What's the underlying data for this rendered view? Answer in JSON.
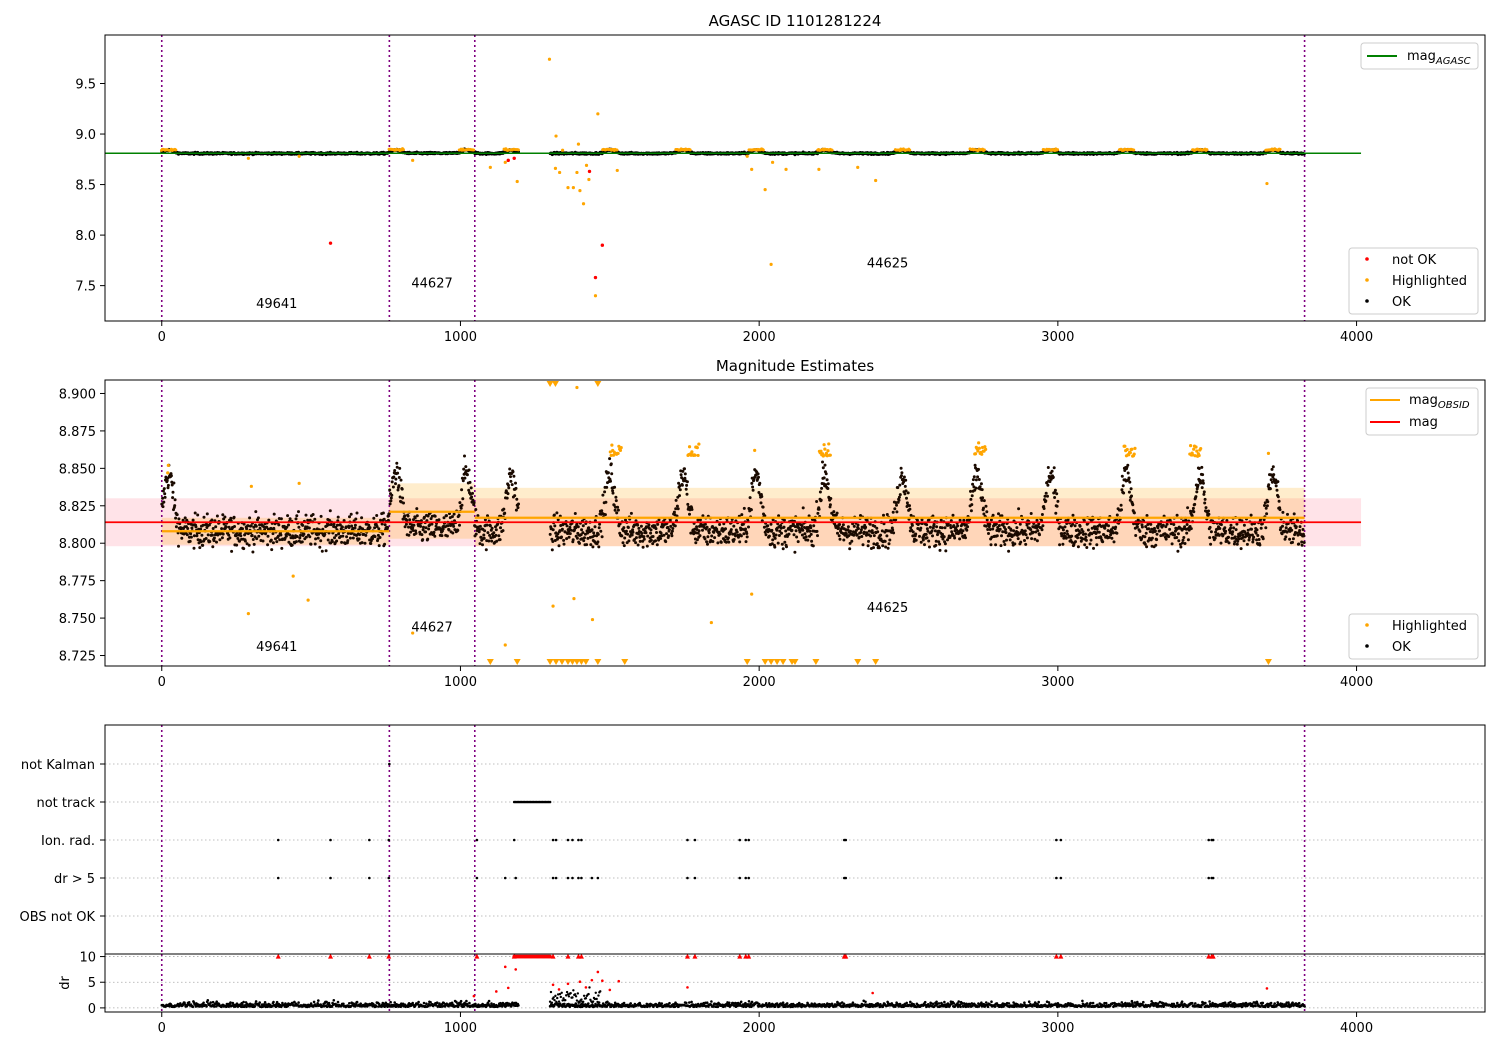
{
  "colors": {
    "ok": "#000000",
    "highlighted": "#ffa500",
    "not_ok": "#ff0000",
    "mag_agasc": "#008000",
    "mag_obsid": "#ffa500",
    "mag": "#ff0000",
    "obsid_boundary": "#800080",
    "mag_band": "#ffc0cb"
  },
  "chart_data": [
    {
      "type": "scatter",
      "title": "AGASC ID 1101281224",
      "xlim": [
        -190,
        4430
      ],
      "ylim": [
        7.15,
        9.98
      ],
      "x_ticks": [
        0,
        1000,
        2000,
        3000,
        4000
      ],
      "y_ticks": [
        7.5,
        8.0,
        8.5,
        9.0,
        9.5
      ],
      "y_tick_labels": [
        "7.5",
        "8.0",
        "8.5",
        "9.0",
        "9.5"
      ],
      "mag_agasc": 8.81,
      "obsid_boundaries": [
        0,
        762,
        1048,
        3826
      ],
      "obsid_labels": [
        {
          "text": "49641",
          "x": 385,
          "y": 7.28
        },
        {
          "text": "44627",
          "x": 905,
          "y": 7.48
        },
        {
          "text": "44625",
          "x": 2430,
          "y": 7.68
        }
      ],
      "legend_lines": [
        {
          "label": "mag",
          "sub": "AGASC",
          "color": "#008000"
        }
      ],
      "legend_points": [
        {
          "label": "not OK",
          "color": "#ff0000"
        },
        {
          "label": "Highlighted",
          "color": "#ffa500"
        },
        {
          "label": "OK",
          "color": "#000000"
        }
      ],
      "highlighted_points": [
        [
          1298,
          9.74
        ],
        [
          1320,
          8.98
        ],
        [
          1318,
          8.66
        ],
        [
          1332,
          8.62
        ],
        [
          1342,
          8.84
        ],
        [
          1360,
          8.47
        ],
        [
          1378,
          8.47
        ],
        [
          1390,
          8.62
        ],
        [
          1395,
          8.9
        ],
        [
          1400,
          8.44
        ],
        [
          1412,
          8.31
        ],
        [
          1422,
          8.69
        ],
        [
          1430,
          8.55
        ],
        [
          1452,
          7.4
        ],
        [
          1460,
          9.2
        ],
        [
          1150,
          8.72
        ],
        [
          1100,
          8.67
        ],
        [
          1190,
          8.53
        ],
        [
          1525,
          8.64
        ],
        [
          1960,
          8.78
        ],
        [
          1975,
          8.65
        ],
        [
          2020,
          8.45
        ],
        [
          2040,
          7.71
        ],
        [
          2045,
          8.72
        ],
        [
          2090,
          8.65
        ],
        [
          2200,
          8.65
        ],
        [
          2330,
          8.67
        ],
        [
          2390,
          8.54
        ],
        [
          3700,
          8.51
        ],
        [
          290,
          8.76
        ],
        [
          460,
          8.78
        ],
        [
          840,
          8.74
        ]
      ],
      "not_ok_points": [
        [
          565,
          7.92
        ],
        [
          1160,
          8.74
        ],
        [
          1432,
          8.63
        ],
        [
          1452,
          7.58
        ],
        [
          1475,
          7.9
        ],
        [
          1180,
          8.76
        ]
      ]
    },
    {
      "type": "scatter",
      "title": "Magnitude Estimates",
      "xlim": [
        -190,
        4430
      ],
      "ylim": [
        8.718,
        8.909
      ],
      "x_ticks": [
        0,
        1000,
        2000,
        3000,
        4000
      ],
      "y_ticks": [
        8.725,
        8.75,
        8.775,
        8.8,
        8.825,
        8.85,
        8.875,
        8.9
      ],
      "y_tick_labels": [
        "8.725",
        "8.750",
        "8.775",
        "8.800",
        "8.825",
        "8.850",
        "8.875",
        "8.900"
      ],
      "mag": 8.814,
      "mag_band": [
        8.798,
        8.83
      ],
      "mag_obsid": [
        {
          "x0": 0,
          "x1": 762,
          "mag": 8.808,
          "band": [
            8.799,
            8.817
          ]
        },
        {
          "x0": 762,
          "x1": 1048,
          "mag": 8.821,
          "band": [
            8.803,
            8.84
          ]
        },
        {
          "x0": 1048,
          "x1": 3826,
          "mag": 8.817,
          "band": [
            8.798,
            8.837
          ]
        }
      ],
      "obsid_labels": [
        {
          "text": "49641",
          "x": 385,
          "y": 8.728
        },
        {
          "text": "44627",
          "x": 905,
          "y": 8.741
        },
        {
          "text": "44625",
          "x": 2430,
          "y": 8.754
        }
      ],
      "legend_lines": [
        {
          "label": "mag",
          "sub": "OBSID",
          "color": "#ffa500"
        },
        {
          "label": "mag",
          "sub": "",
          "color": "#ff0000"
        }
      ],
      "legend_points": [
        {
          "label": "Highlighted",
          "color": "#ffa500"
        },
        {
          "label": "OK",
          "color": "#000000"
        }
      ],
      "highlighted_points": [
        [
          20,
          8.847
        ],
        [
          22,
          8.852
        ],
        [
          290,
          8.753
        ],
        [
          300,
          8.838
        ],
        [
          440,
          8.778
        ],
        [
          460,
          8.84
        ],
        [
          490,
          8.762
        ],
        [
          840,
          8.74
        ],
        [
          1150,
          8.732
        ],
        [
          1310,
          8.758
        ],
        [
          1420,
          8.721
        ],
        [
          1380,
          8.763
        ],
        [
          1390,
          8.904
        ],
        [
          1442,
          8.749
        ],
        [
          1840,
          8.747
        ],
        [
          1975,
          8.766
        ],
        [
          1985,
          8.862
        ],
        [
          3705,
          8.86
        ]
      ],
      "lower_limit_x": [
        1100,
        1190,
        1300,
        1320,
        1340,
        1360,
        1375,
        1390,
        1405,
        1420,
        1460,
        1550,
        1960,
        2020,
        2040,
        2060,
        2080,
        2110,
        2120,
        2190,
        2330,
        2390,
        3705
      ],
      "upper_limit_x": [
        1300,
        1318,
        1460
      ],
      "bump_x": [
        23,
        785,
        1020,
        1170,
        1500,
        1745,
        1990,
        2220,
        2480,
        2730,
        2975,
        3230,
        3475,
        3720
      ],
      "bump_highlight_x": [
        1520,
        1780,
        2220,
        2740,
        3240,
        3460
      ]
    },
    {
      "type": "scatter",
      "title": "",
      "xlim": [
        -190,
        4430
      ],
      "categories": [
        "not Kalman",
        "not track",
        "Ion. rad.",
        "dr > 5",
        "OBS not OK"
      ],
      "not_kalman_x": [
        762
      ],
      "not_track_x0": 1180,
      "not_track_x1": 1300,
      "ion_rad_x": [
        390,
        565,
        695,
        760,
        1055,
        1180,
        1310,
        1320,
        1360,
        1375,
        1395,
        1405,
        1760,
        1785,
        1935,
        1955,
        1965,
        2285,
        2290,
        2995,
        3010,
        3505,
        3515,
        3520
      ],
      "dr_gt_5_x": [
        390,
        565,
        695,
        760,
        1055,
        1150,
        1185,
        1310,
        1320,
        1360,
        1375,
        1395,
        1405,
        1440,
        1460,
        1760,
        1785,
        1935,
        1955,
        1965,
        2285,
        2290,
        2995,
        3010,
        3505,
        3515,
        3520
      ],
      "obsid_boundaries": [
        0,
        762,
        1048,
        3826
      ]
    },
    {
      "type": "scatter",
      "title": "",
      "xlim": [
        -190,
        4430
      ],
      "ylim": [
        -0.8,
        10.5
      ],
      "ylabel": "dr",
      "x_ticks": [
        0,
        1000,
        2000,
        3000,
        4000
      ],
      "y_ticks": [
        0,
        5,
        10
      ],
      "clipped_at_10_x": [
        390,
        565,
        695,
        760,
        1055,
        1180,
        1310,
        1360,
        1395,
        1405,
        1760,
        1785,
        1935,
        1955,
        1965,
        2285,
        2290,
        2995,
        3010,
        3505,
        3515,
        3520
      ],
      "red_points": [
        [
          1150,
          8
        ],
        [
          1185,
          7.5
        ],
        [
          1310,
          4.5
        ],
        [
          1330,
          3.6
        ],
        [
          1360,
          4.7
        ],
        [
          1400,
          5.1
        ],
        [
          1420,
          4
        ],
        [
          1440,
          5.4
        ],
        [
          1460,
          7
        ],
        [
          1475,
          5.3
        ],
        [
          1500,
          3.5
        ],
        [
          1530,
          5.2
        ],
        [
          1760,
          4
        ],
        [
          2380,
          2.9
        ],
        [
          3700,
          3.8
        ],
        [
          1045,
          2.3
        ],
        [
          1120,
          3.2
        ],
        [
          1160,
          3.9
        ]
      ]
    }
  ]
}
